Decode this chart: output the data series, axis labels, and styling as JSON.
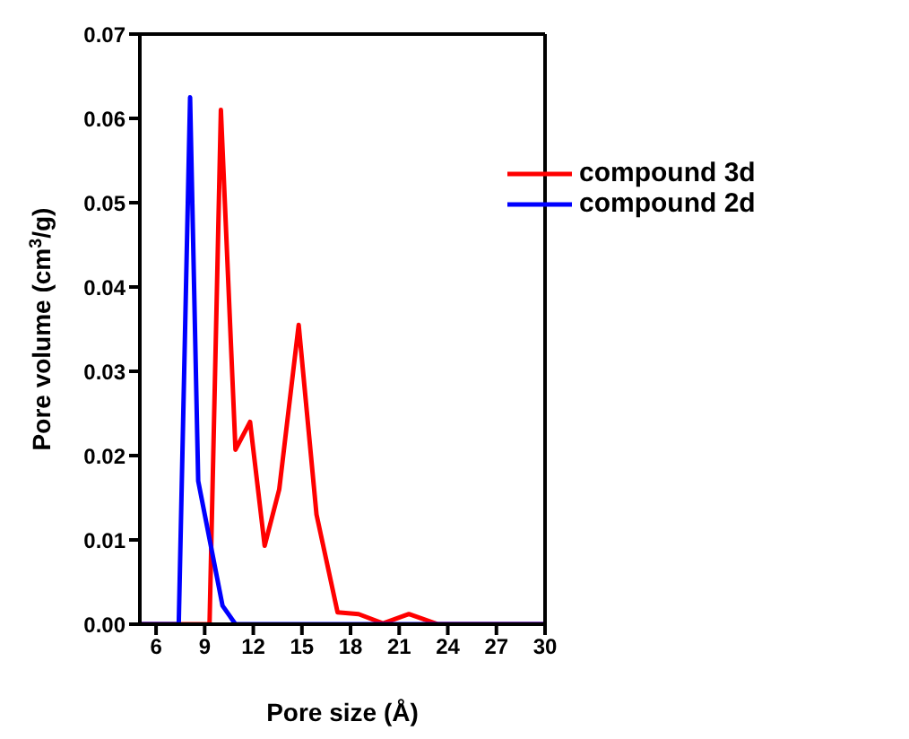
{
  "chart_data": {
    "type": "line",
    "xlabel": "Pore size (Å)",
    "ylabel": "Pore volume (cm$^{3}$/g)",
    "xlim": [
      5,
      30
    ],
    "xticks": [
      6,
      9,
      12,
      15,
      18,
      21,
      24,
      27,
      30
    ],
    "ylim": [
      0,
      0.07
    ],
    "yticks": [
      {
        "value": 0,
        "label": "0.00"
      },
      {
        "value": 0.01,
        "label": "0.01"
      },
      {
        "value": 0.02,
        "label": "0.02"
      },
      {
        "value": 0.03,
        "label": "0.03"
      },
      {
        "value": 0.04,
        "label": "0.04"
      },
      {
        "value": 0.05,
        "label": "0.05"
      },
      {
        "value": 0.06,
        "label": "0.06"
      },
      {
        "value": 0.07,
        "label": "0.07"
      }
    ],
    "grid": false,
    "legend": "top right",
    "marker": "none",
    "line_style": "solid",
    "series": [
      {
        "name": "compound 3d",
        "color": "#ff0000",
        "x": [
          5,
          9.3,
          10.0,
          10.9,
          11.8,
          12.7,
          13.6,
          14.8,
          15.9,
          17.2,
          18.5,
          20.0,
          21.6,
          23.4,
          30
        ],
        "values": [
          0,
          0,
          0.061,
          0.0207,
          0.024,
          0.0093,
          0.016,
          0.0355,
          0.013,
          0.0014,
          0.0012,
          0.0001,
          0.0012,
          0,
          0
        ]
      },
      {
        "name": "compound 2d",
        "color": "#0000ff",
        "x": [
          5,
          7.4,
          8.1,
          8.6,
          10.1,
          10.9,
          30
        ],
        "values": [
          0,
          0,
          0.0625,
          0.017,
          0.0022,
          0,
          0
        ]
      }
    ]
  }
}
